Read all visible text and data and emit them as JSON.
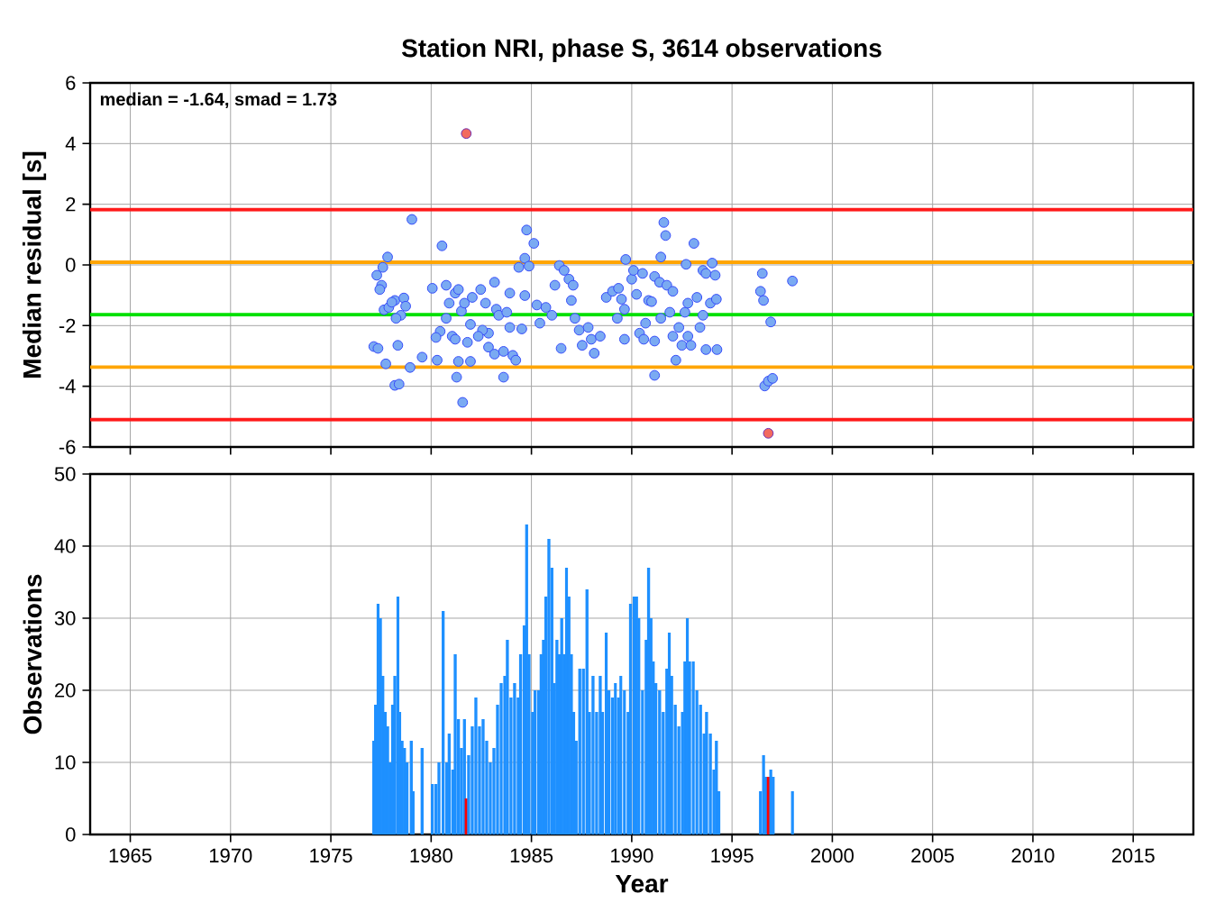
{
  "chart_data": [
    {
      "type": "scatter",
      "title": "Station NRI, phase S, 3614 observations",
      "ylabel": "Median residual [s]",
      "annotations": [
        "median = -1.64, smad = 1.73"
      ],
      "xlim": [
        1963,
        2018
      ],
      "xticks": [
        1965,
        1970,
        1975,
        1980,
        1985,
        1990,
        1995,
        2000,
        2005,
        2010,
        2015
      ],
      "ylim": [
        -6,
        6
      ],
      "yticks": [
        -6,
        -4,
        -2,
        0,
        2,
        4,
        6
      ],
      "grid": true,
      "marker": "circle",
      "tick_labels": "y",
      "ref_lines": [
        {
          "axis": "y",
          "value": 1.82,
          "color": "#ff1a1a"
        },
        {
          "axis": "y",
          "value": 0.09,
          "color": "#ffa500"
        },
        {
          "axis": "y",
          "value": -1.64,
          "color": "#00e000"
        },
        {
          "axis": "y",
          "value": -3.37,
          "color": "#ffa500"
        },
        {
          "axis": "y",
          "value": -5.1,
          "color": "#ff1a1a"
        }
      ],
      "series": [
        {
          "color": "#7aaaf2",
          "x": [
            1979.04,
            1980.54,
            1977.83,
            1977.59,
            1977.29,
            1977.53,
            1977.44,
            1977.65,
            1977.89,
            1978.19,
            1978.64,
            1978.73,
            1978.49,
            1978.25,
            1978.04,
            1977.14,
            1977.35,
            1977.74,
            1978.34,
            1978.95,
            1978.19,
            1978.4,
            1979.55,
            1980.3,
            1980.06,
            1980.75,
            1980.9,
            1981.2,
            1981.36,
            1980.75,
            1980.45,
            1980.24,
            1981.05,
            1981.2,
            1981.81,
            1981.96,
            1981.51,
            1981.66,
            1982.05,
            1982.47,
            1982.71,
            1983.16,
            1983.25,
            1982.86,
            1982.56,
            1982.35,
            1982.86,
            1983.16,
            1983.61,
            1984.07,
            1984.22,
            1981.36,
            1981.96,
            1981.27,
            1981.57,
            1983.61,
            1983.92,
            1983.37,
            1983.77,
            1983.92,
            1984.52,
            1984.67,
            1984.76,
            1985.12,
            1984.37,
            1984.67,
            1984.88,
            1985.27,
            1985.42,
            1985.72,
            1986.02,
            1986.17,
            1986.39,
            1986.63,
            1986.87,
            1987.08,
            1986.99,
            1986.48,
            1987.17,
            1987.38,
            1987.53,
            1987.83,
            1988.13,
            1987.98,
            1988.43,
            1988.73,
            1989.04,
            1989.34,
            1989.49,
            1989.64,
            1989.7,
            1989.28,
            1989.64,
            1990.0,
            1990.09,
            1990.54,
            1990.24,
            1990.84,
            1990.99,
            1991.14,
            1991.39,
            1991.6,
            1991.69,
            1991.45,
            1991.75,
            1992.05,
            1991.9,
            1991.45,
            1990.69,
            1990.39,
            1990.6,
            1991.14,
            1991.14,
            1992.2,
            1992.05,
            1992.35,
            1992.5,
            1992.8,
            1992.95,
            1992.65,
            1992.8,
            1993.1,
            1992.71,
            1993.25,
            1993.55,
            1993.4,
            1993.7,
            1994.25,
            1993.55,
            1993.7,
            1994.01,
            1994.16,
            1993.92,
            1994.22,
            1996.51,
            1996.42,
            1996.57,
            1996.93,
            1998.01,
            1996.63,
            1996.81,
            1997.02
          ],
          "values": [
            1.5,
            0.63,
            0.26,
            -0.08,
            -0.34,
            -0.67,
            -0.81,
            -1.48,
            -1.4,
            -1.17,
            -1.09,
            -1.36,
            -1.66,
            -1.76,
            -1.23,
            -2.69,
            -2.75,
            -3.26,
            -2.65,
            -3.38,
            -3.97,
            -3.93,
            -3.04,
            -3.14,
            -0.77,
            -0.67,
            -1.26,
            -0.93,
            -0.81,
            -1.76,
            -2.19,
            -2.39,
            -2.35,
            -2.45,
            -2.55,
            -1.96,
            -1.52,
            -1.26,
            -1.07,
            -0.81,
            -1.26,
            -0.57,
            -1.46,
            -2.25,
            -2.15,
            -2.35,
            -2.71,
            -2.94,
            -2.85,
            -2.98,
            -3.14,
            -3.18,
            -3.18,
            -3.7,
            -4.53,
            -3.7,
            -0.93,
            -1.66,
            -1.56,
            -2.06,
            -2.11,
            -1.01,
            1.15,
            0.71,
            -0.08,
            0.22,
            -0.04,
            -1.32,
            -1.92,
            -1.4,
            -1.66,
            -0.67,
            -0.02,
            -0.18,
            -0.47,
            -0.67,
            -1.17,
            -2.75,
            -1.76,
            -2.15,
            -2.65,
            -2.06,
            -2.91,
            -2.45,
            -2.35,
            -1.07,
            -0.87,
            -0.77,
            -1.13,
            -1.46,
            0.18,
            -1.76,
            -2.45,
            -0.47,
            -0.18,
            -0.28,
            -0.97,
            -1.17,
            -1.21,
            -0.38,
            -0.57,
            1.4,
            0.97,
            0.26,
            -0.67,
            -0.87,
            -1.56,
            -1.76,
            -1.92,
            -2.25,
            -2.45,
            -2.51,
            -3.64,
            -3.14,
            -2.35,
            -2.06,
            -2.65,
            -2.35,
            -2.65,
            -1.56,
            -1.26,
            0.71,
            0.02,
            -1.07,
            -1.66,
            -2.06,
            -2.79,
            -2.79,
            -0.18,
            -0.28,
            0.06,
            -0.34,
            -1.26,
            -1.13,
            -0.28,
            -0.87,
            -1.17,
            -1.88,
            -0.53,
            -3.99,
            -3.83,
            -3.74
          ]
        },
        {
          "color": "#f26a5e",
          "x": [
            1981.75,
            1996.81
          ],
          "values": [
            4.33,
            -5.55
          ]
        }
      ]
    },
    {
      "type": "bar",
      "xlabel": "Year",
      "ylabel": "Observations",
      "xlim": [
        1963,
        2018
      ],
      "xticks": [
        1965,
        1970,
        1975,
        1980,
        1985,
        1990,
        1995,
        2000,
        2005,
        2010,
        2015
      ],
      "ylim": [
        0,
        50
      ],
      "yticks": [
        0,
        10,
        20,
        30,
        40,
        50
      ],
      "grid": true,
      "x": [
        1977.14,
        1977.23,
        1977.35,
        1977.47,
        1977.59,
        1977.71,
        1977.83,
        1977.95,
        1978.07,
        1978.19,
        1978.34,
        1978.43,
        1978.55,
        1978.67,
        1978.8,
        1979.01,
        1979.1,
        1979.55,
        1980.06,
        1980.24,
        1980.39,
        1980.6,
        1980.78,
        1980.9,
        1981.08,
        1981.2,
        1981.36,
        1981.51,
        1981.66,
        1981.75,
        1981.87,
        1982.05,
        1982.23,
        1982.41,
        1982.59,
        1982.77,
        1982.95,
        1983.13,
        1983.31,
        1983.49,
        1983.67,
        1983.8,
        1983.98,
        1984.16,
        1984.34,
        1984.46,
        1984.64,
        1984.76,
        1984.88,
        1985.06,
        1985.18,
        1985.36,
        1985.48,
        1985.6,
        1985.72,
        1985.87,
        1986.02,
        1986.14,
        1986.27,
        1986.39,
        1986.51,
        1986.63,
        1986.75,
        1986.87,
        1986.99,
        1987.11,
        1987.23,
        1987.41,
        1987.59,
        1987.77,
        1987.89,
        1988.07,
        1988.25,
        1988.43,
        1988.55,
        1988.73,
        1988.86,
        1989.04,
        1989.19,
        1989.34,
        1989.46,
        1989.64,
        1989.82,
        1989.94,
        1990.12,
        1990.24,
        1990.36,
        1990.54,
        1990.72,
        1990.84,
        1990.96,
        1991.08,
        1991.2,
        1991.39,
        1991.57,
        1991.75,
        1991.87,
        1991.99,
        1992.17,
        1992.35,
        1992.53,
        1992.65,
        1992.77,
        1992.89,
        1993.07,
        1993.25,
        1993.43,
        1993.61,
        1993.73,
        1993.92,
        1994.1,
        1994.22,
        1994.34,
        1996.42,
        1996.57,
        1996.69,
        1996.81,
        1996.93,
        1997.05,
        1998.01
      ],
      "values": [
        13,
        18,
        32,
        30,
        22,
        17,
        15,
        10,
        18,
        22,
        33,
        17,
        13,
        12,
        10,
        13,
        6,
        12,
        7,
        7,
        10,
        31,
        10,
        14,
        9,
        25,
        16,
        12,
        16,
        5,
        11,
        15,
        19,
        15,
        16,
        13,
        10,
        12,
        18,
        21,
        22,
        27,
        19,
        21,
        19,
        25,
        29,
        43,
        25,
        17,
        20,
        20,
        25,
        27,
        33,
        41,
        37,
        21,
        27,
        25,
        30,
        25,
        37,
        33,
        25,
        17,
        13,
        23,
        23,
        34,
        17,
        22,
        17,
        22,
        17,
        28,
        20,
        19,
        21,
        19,
        22,
        20,
        17,
        32,
        33,
        33,
        30,
        20,
        27,
        37,
        30,
        24,
        21,
        20,
        17,
        23,
        28,
        22,
        18,
        15,
        17,
        24,
        30,
        24,
        24,
        20,
        18,
        14,
        17,
        14,
        9,
        13,
        6,
        6,
        11,
        8,
        8,
        9,
        8,
        6
      ],
      "colors": [
        "#1e90ff",
        "#1e90ff",
        "#1e90ff",
        "#1e90ff",
        "#1e90ff",
        "#1e90ff",
        "#1e90ff",
        "#1e90ff",
        "#1e90ff",
        "#1e90ff",
        "#1e90ff",
        "#1e90ff",
        "#1e90ff",
        "#1e90ff",
        "#1e90ff",
        "#1e90ff",
        "#1e90ff",
        "#1e90ff",
        "#1e90ff",
        "#1e90ff",
        "#1e90ff",
        "#1e90ff",
        "#1e90ff",
        "#1e90ff",
        "#1e90ff",
        "#1e90ff",
        "#1e90ff",
        "#1e90ff",
        "#1e90ff",
        "#ff0000",
        "#1e90ff",
        "#1e90ff",
        "#1e90ff",
        "#1e90ff",
        "#1e90ff",
        "#1e90ff",
        "#1e90ff",
        "#1e90ff",
        "#1e90ff",
        "#1e90ff",
        "#1e90ff",
        "#1e90ff",
        "#1e90ff",
        "#1e90ff",
        "#1e90ff",
        "#1e90ff",
        "#1e90ff",
        "#1e90ff",
        "#1e90ff",
        "#1e90ff",
        "#1e90ff",
        "#1e90ff",
        "#1e90ff",
        "#1e90ff",
        "#1e90ff",
        "#1e90ff",
        "#1e90ff",
        "#1e90ff",
        "#1e90ff",
        "#1e90ff",
        "#1e90ff",
        "#1e90ff",
        "#1e90ff",
        "#1e90ff",
        "#1e90ff",
        "#1e90ff",
        "#1e90ff",
        "#1e90ff",
        "#1e90ff",
        "#1e90ff",
        "#1e90ff",
        "#1e90ff",
        "#1e90ff",
        "#1e90ff",
        "#1e90ff",
        "#1e90ff",
        "#1e90ff",
        "#1e90ff",
        "#1e90ff",
        "#1e90ff",
        "#1e90ff",
        "#1e90ff",
        "#1e90ff",
        "#1e90ff",
        "#1e90ff",
        "#1e90ff",
        "#1e90ff",
        "#1e90ff",
        "#1e90ff",
        "#1e90ff",
        "#1e90ff",
        "#1e90ff",
        "#1e90ff",
        "#1e90ff",
        "#1e90ff",
        "#1e90ff",
        "#1e90ff",
        "#1e90ff",
        "#1e90ff",
        "#1e90ff",
        "#1e90ff",
        "#1e90ff",
        "#1e90ff",
        "#1e90ff",
        "#1e90ff",
        "#1e90ff",
        "#1e90ff",
        "#1e90ff",
        "#1e90ff",
        "#1e90ff",
        "#1e90ff",
        "#1e90ff",
        "#1e90ff",
        "#1e90ff",
        "#1e90ff",
        "#1e90ff",
        "#ff0000",
        "#1e90ff",
        "#1e90ff",
        "#1e90ff"
      ]
    }
  ]
}
